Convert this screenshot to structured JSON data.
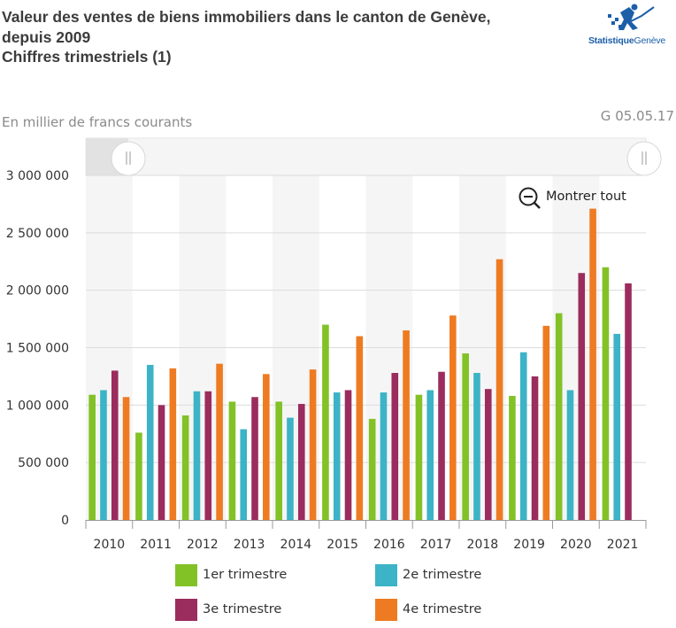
{
  "header": {
    "title_line1": "Valeur des ventes de biens immobiliers dans le canton de Genève,",
    "title_line2": "depuis 2009",
    "title_line3": "Chiffres trimestriels (1)",
    "unit_label": "En millier de francs courants",
    "graph_code": "G 05.05.17"
  },
  "logo": {
    "text_bold": "Statistique",
    "text_rest": "Genève"
  },
  "zoom": {
    "show_all_label": "Montrer tout"
  },
  "chart_data": {
    "type": "bar",
    "categories": [
      "2010",
      "2011",
      "2012",
      "2013",
      "2014",
      "2015",
      "2016",
      "2017",
      "2018",
      "2019",
      "2020",
      "2021"
    ],
    "ylim": [
      0,
      3000000
    ],
    "yticks": [
      0,
      500000,
      1000000,
      1500000,
      2000000,
      2500000,
      3000000
    ],
    "ytick_labels": [
      "0",
      "500 000",
      "1 000 000",
      "1 500 000",
      "2 000 000",
      "2 500 000",
      "3 000 000"
    ],
    "grid": true,
    "legend_position": "bottom",
    "series": [
      {
        "name": "1er trimestre",
        "color": "#82c226",
        "values": [
          1090000,
          760000,
          910000,
          1030000,
          1030000,
          1700000,
          880000,
          1090000,
          1450000,
          1080000,
          1800000,
          2200000
        ]
      },
      {
        "name": "2e trimestre",
        "color": "#3cb3c6",
        "values": [
          1130000,
          1350000,
          1120000,
          790000,
          890000,
          1110000,
          1110000,
          1130000,
          1280000,
          1460000,
          1130000,
          1620000
        ]
      },
      {
        "name": "3e trimestre",
        "color": "#9b2c5e",
        "values": [
          1300000,
          1000000,
          1120000,
          1070000,
          1010000,
          1130000,
          1280000,
          1290000,
          1140000,
          1250000,
          2150000,
          2060000
        ]
      },
      {
        "name": "4e trimestre",
        "color": "#ee7b22",
        "values": [
          1070000,
          1320000,
          1360000,
          1270000,
          1310000,
          1600000,
          1650000,
          1780000,
          2270000,
          1690000,
          2710000,
          null
        ]
      }
    ]
  }
}
